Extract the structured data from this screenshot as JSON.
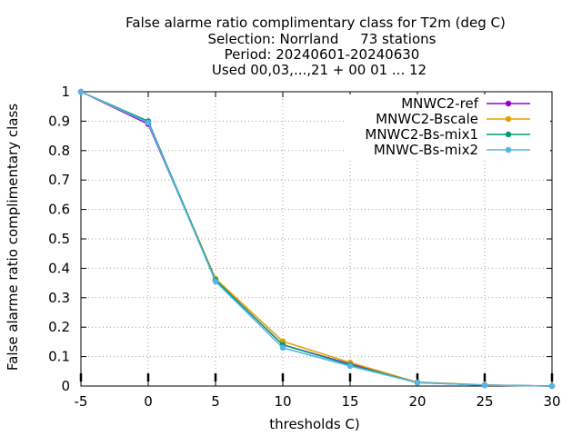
{
  "chart_data": {
    "type": "line",
    "title_lines": [
      "False alarme ratio complimentary class  for T2m (deg C)",
      "Selection: Norrland     73 stations",
      "Period: 20240601-20240630",
      "Used 00,03,...,21 + 00 01 ... 12"
    ],
    "xlabel": "thresholds C)",
    "ylabel": "False alarme ratio complimentary class",
    "xlim": [
      -5,
      30
    ],
    "ylim": [
      0,
      1
    ],
    "x_ticks": [
      "-5",
      "0",
      "5",
      "10",
      "15",
      "20",
      "25",
      "30"
    ],
    "y_ticks": [
      "0",
      "0.1",
      "0.2",
      "0.3",
      "0.4",
      "0.5",
      "0.6",
      "0.7",
      "0.8",
      "0.9",
      "1"
    ],
    "grid": true,
    "legend_position": "top-right",
    "x": [
      -5,
      0,
      5,
      10,
      15,
      20,
      25,
      30
    ],
    "series": [
      {
        "name": "MNWC2-ref",
        "color": "#9400d3",
        "values": [
          1.0,
          0.89,
          0.36,
          0.14,
          0.075,
          0.012,
          0.003,
          0.0
        ]
      },
      {
        "name": "MNWC2-Bscale",
        "color": "#e69f00",
        "values": [
          1.0,
          0.895,
          0.365,
          0.152,
          0.08,
          0.013,
          0.004,
          0.0
        ]
      },
      {
        "name": "MNWC2-Bs-mix1",
        "color": "#009e73",
        "values": [
          1.0,
          0.9,
          0.36,
          0.14,
          0.072,
          0.012,
          0.003,
          0.0
        ]
      },
      {
        "name": "MNWC-Bs-mix2",
        "color": "#56b4e9",
        "values": [
          1.0,
          0.895,
          0.355,
          0.13,
          0.068,
          0.011,
          0.003,
          0.0
        ]
      }
    ]
  }
}
